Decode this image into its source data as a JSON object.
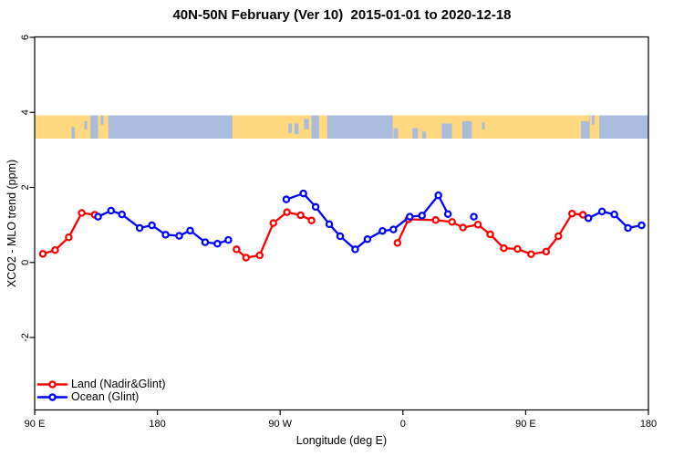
{
  "chart_data": {
    "type": "line",
    "title": "40N-50N February (Ver 10)  2015-01-01 to 2020-12-18",
    "xlabel": "Longitude (deg E)",
    "ylabel": "XCO2 - MLO trend (ppm)",
    "xlim": [
      90,
      540
    ],
    "ylim": [
      -3.93,
      6.01
    ],
    "grid": false,
    "legend_position": "bottom-left",
    "x_ticks": [
      {
        "v": 90,
        "label": "90 E"
      },
      {
        "v": 180,
        "label": "180"
      },
      {
        "v": 270,
        "label": "90 W"
      },
      {
        "v": 360,
        "label": "0"
      },
      {
        "v": 450,
        "label": "90 E"
      },
      {
        "v": 540,
        "label": "180"
      }
    ],
    "y_ticks": [
      {
        "v": 6,
        "label": "6"
      },
      {
        "v": 4,
        "label": "4"
      },
      {
        "v": 2,
        "label": "2"
      },
      {
        "v": 0,
        "label": "0"
      },
      {
        "v": -2,
        "label": "-2"
      }
    ],
    "series": [
      {
        "name": "Land (Nadir&Glint)",
        "color": "#ff0000",
        "marker": "open-circle",
        "segments": [
          [
            [
              96,
              0.23
            ],
            [
              105,
              0.33
            ],
            [
              115,
              0.67
            ],
            [
              124.5,
              1.32
            ],
            [
              134,
              1.27
            ]
          ],
          [
            [
              238,
              0.35
            ],
            [
              245,
              0.13
            ],
            [
              255,
              0.19
            ],
            [
              265,
              1.05
            ],
            [
              275,
              1.34
            ],
            [
              285,
              1.26
            ],
            [
              293,
              1.12
            ]
          ],
          [
            [
              356,
              0.52
            ],
            [
              364,
              1.15
            ],
            [
              384,
              1.13
            ],
            [
              396,
              1.08
            ],
            [
              404,
              0.93
            ],
            [
              415,
              1.01
            ],
            [
              424,
              0.75
            ],
            [
              434,
              0.38
            ],
            [
              444,
              0.36
            ],
            [
              454,
              0.22
            ],
            [
              465,
              0.29
            ],
            [
              474,
              0.7
            ],
            [
              484,
              1.3
            ],
            [
              492,
              1.27
            ]
          ]
        ]
      },
      {
        "name": "Ocean (Glint)",
        "color": "#0000ff",
        "marker": "open-circle",
        "segments": [
          [
            [
              136.5,
              1.22
            ],
            [
              146,
              1.38
            ],
            [
              154,
              1.28
            ],
            [
              167,
              0.92
            ],
            [
              176,
              0.99
            ],
            [
              186,
              0.74
            ],
            [
              196,
              0.71
            ],
            [
              204,
              0.85
            ],
            [
              215,
              0.54
            ],
            [
              224,
              0.5
            ],
            [
              232,
              0.6
            ]
          ],
          [
            [
              274.5,
              1.68
            ],
            [
              287,
              1.84
            ],
            [
              296,
              1.48
            ],
            [
              306,
              1.02
            ],
            [
              314,
              0.7
            ],
            [
              325,
              0.35
            ],
            [
              334,
              0.62
            ],
            [
              345,
              0.84
            ],
            [
              353,
              0.88
            ],
            [
              365,
              1.22
            ],
            [
              374,
              1.25
            ],
            [
              386,
              1.79
            ],
            [
              393,
              1.29
            ]
          ],
          [
            [
              412,
              1.22
            ]
          ],
          [
            [
              496,
              1.18
            ],
            [
              506,
              1.36
            ],
            [
              515,
              1.28
            ],
            [
              525,
              0.92
            ],
            [
              535,
              0.99
            ]
          ]
        ]
      }
    ],
    "map_band": {
      "value_top": 3.92,
      "value_bottom": 3.3,
      "ocean_color": "#a9bcdc",
      "land_color": "#ffd87f",
      "land_segments": [
        [
          90,
          131
        ],
        [
          136.5,
          144
        ],
        [
          235,
          293
        ],
        [
          298.5,
          304.5
        ],
        [
          352.5,
          496.5
        ],
        [
          497,
          504
        ]
      ],
      "water_patches": [
        [
          117,
          119.5,
          0.5,
          1
        ],
        [
          126.5,
          128.5,
          0.25,
          0.6
        ],
        [
          138.5,
          140.5,
          0,
          0.4
        ],
        [
          276,
          278.5,
          0.35,
          0.75
        ],
        [
          280.5,
          283.5,
          0.35,
          0.8
        ],
        [
          287.5,
          291,
          0.15,
          0.6
        ],
        [
          353,
          356.5,
          0.55,
          1
        ],
        [
          367,
          371,
          0.55,
          1
        ],
        [
          374,
          377,
          0.7,
          1
        ],
        [
          388.5,
          396,
          0.35,
          1
        ],
        [
          403.5,
          410.5,
          0.25,
          1
        ],
        [
          418,
          420,
          0.3,
          0.6
        ],
        [
          490.5,
          496.5,
          0.25,
          1
        ],
        [
          498.5,
          500.5,
          0,
          0.4
        ]
      ]
    }
  }
}
